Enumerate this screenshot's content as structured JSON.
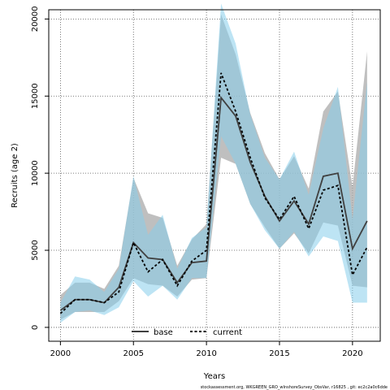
{
  "chart_data": {
    "type": "line",
    "xlabel": "Years",
    "ylabel": "Recruits (age 2)",
    "xlim": [
      1999.2,
      2021.9
    ],
    "ylim": [
      -900,
      20600
    ],
    "xticks": [
      2000,
      2005,
      2010,
      2015,
      2020
    ],
    "yticks": [
      0,
      5000,
      10000,
      15000,
      20000
    ],
    "grid": true,
    "legend_position": "bottom-center",
    "x": [
      2000,
      2001,
      2002,
      2003,
      2004,
      2005,
      2006,
      2007,
      2008,
      2009,
      2010,
      2011,
      2012,
      2013,
      2014,
      2015,
      2016,
      2017,
      2018,
      2019,
      2020,
      2021
    ],
    "series": [
      {
        "name": "base",
        "color": "#404040",
        "band_color": "#a9a9a9",
        "line_style": "solid",
        "values": [
          1100,
          1800,
          1800,
          1600,
          2600,
          5500,
          4500,
          4400,
          2900,
          4200,
          4300,
          14900,
          13700,
          10700,
          8500,
          6900,
          8200,
          6700,
          9800,
          10000,
          5100,
          6900
        ],
        "lower": [
          500,
          1000,
          1000,
          1000,
          1700,
          3200,
          2800,
          2700,
          2000,
          3100,
          3200,
          11000,
          10600,
          8000,
          6500,
          5100,
          6100,
          4800,
          6800,
          6600,
          2700,
          2600
        ],
        "upper": [
          2100,
          2900,
          2900,
          2500,
          4000,
          9700,
          7400,
          7100,
          4000,
          5700,
          6700,
          20300,
          17700,
          13900,
          11300,
          9600,
          11100,
          9000,
          14000,
          15300,
          9100,
          17900
        ]
      },
      {
        "name": "current",
        "color": "#000000",
        "band_color": "#87ceeb",
        "line_style": "dashed",
        "values": [
          900,
          1800,
          1800,
          1600,
          2300,
          5500,
          3600,
          4400,
          2700,
          4300,
          5000,
          16500,
          14000,
          11000,
          8400,
          7000,
          8500,
          6400,
          8900,
          9200,
          3400,
          5200
        ],
        "lower": [
          300,
          1000,
          1100,
          800,
          1300,
          3000,
          2000,
          2700,
          1800,
          3200,
          3200,
          12400,
          10600,
          8000,
          6300,
          5100,
          6200,
          4600,
          5900,
          5600,
          1600,
          1600
        ],
        "upper": [
          1600,
          3300,
          3100,
          2300,
          3800,
          9800,
          6000,
          7300,
          3800,
          5800,
          6500,
          21000,
          18400,
          13800,
          11000,
          9600,
          11400,
          8600,
          12900,
          15600,
          7000,
          15900
        ]
      }
    ]
  },
  "footer_text": "stockassessment.org, WKGREEN_GRO_wInshoreSurvey_ObsVar, r16825 , git: ec2c2a0c6dde"
}
